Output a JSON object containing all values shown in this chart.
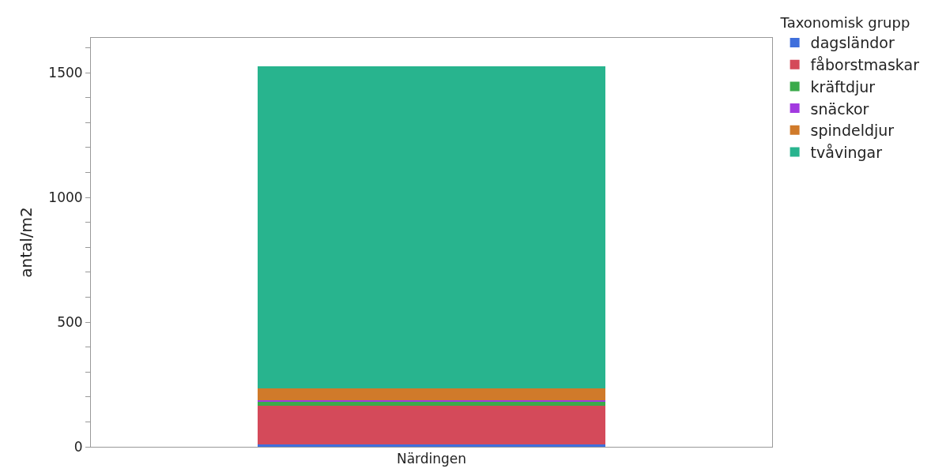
{
  "chart_data": {
    "type": "bar",
    "stacked": true,
    "ylabel": "antal/m2",
    "legend_title": "Taxonomisk grupp",
    "categories": [
      "Närdingen"
    ],
    "series": [
      {
        "name": "dagsländor",
        "color": "#3f6fdc",
        "values": [
          8
        ]
      },
      {
        "name": "fåborstmaskar",
        "color": "#d44a5a",
        "values": [
          156
        ]
      },
      {
        "name": "kräftdjur",
        "color": "#3aaa4a",
        "values": [
          15
        ]
      },
      {
        "name": "snäckor",
        "color": "#a23ae0",
        "values": [
          8
        ]
      },
      {
        "name": "spindeldjur",
        "color": "#d07a2a",
        "values": [
          48
        ]
      },
      {
        "name": "tvåvingar",
        "color": "#28b48e",
        "values": [
          1290
        ]
      }
    ],
    "ylim": [
      0,
      1640
    ],
    "yticks": [
      0,
      {
        "value": 100,
        "label": null
      },
      {
        "value": 200,
        "label": null
      },
      {
        "value": 300,
        "label": null
      },
      {
        "value": 400,
        "label": null
      },
      500,
      {
        "value": 600,
        "label": null
      },
      {
        "value": 700,
        "label": null
      },
      {
        "value": 800,
        "label": null
      },
      {
        "value": 900,
        "label": null
      },
      1000,
      {
        "value": 1100,
        "label": null
      },
      {
        "value": 1200,
        "label": null
      },
      {
        "value": 1300,
        "label": null
      },
      {
        "value": 1400,
        "label": null
      },
      1500,
      {
        "value": 1600,
        "label": null
      }
    ],
    "legend": "top right"
  }
}
